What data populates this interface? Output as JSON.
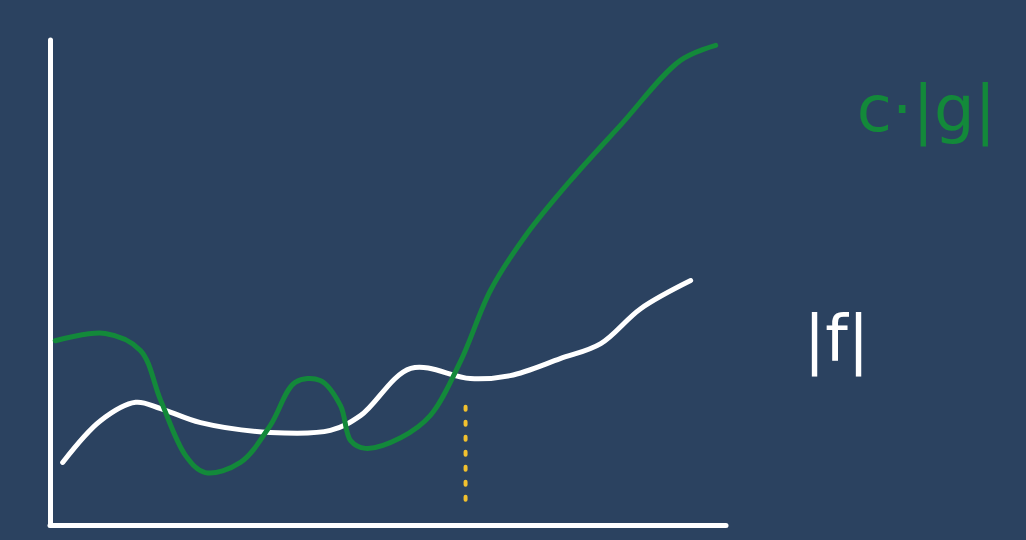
{
  "chart_data": {
    "type": "line",
    "tick_labels": false,
    "grid": false,
    "xlim": [
      0,
      100
    ],
    "ylim": [
      0,
      100
    ],
    "xticks": [],
    "yticks": [],
    "series": [
      {
        "name": "c·|g|",
        "color": "#13893a",
        "x": [
          0.7,
          8.1,
          13.3,
          16.3,
          20.0,
          22.9,
          28.1,
          32.5,
          36.2,
          39.9,
          42.9,
          44.4,
          46.6,
          51.8,
          56.2,
          60.7,
          65.1,
          70.3,
          76.9,
          84.3,
          93.2,
          98.4
        ],
        "values": [
          38.1,
          39.6,
          36.1,
          25.8,
          14.4,
          10.9,
          13.0,
          20.6,
          29.5,
          29.9,
          24.7,
          17.5,
          15.9,
          18.1,
          22.7,
          34.0,
          48.5,
          59.8,
          71.1,
          82.5,
          95.9,
          99.0
        ]
      },
      {
        "name": "|f|",
        "color": "#ffffff",
        "x": [
          1.8,
          7.4,
          12.6,
          16.3,
          22.2,
          32.5,
          41.4,
          45.9,
          53.3,
          62.1,
          68.0,
          75.4,
          81.4,
          87.3,
          94.7
        ],
        "values": [
          13.0,
          21.6,
          25.4,
          24.1,
          21.2,
          19.2,
          19.6,
          22.7,
          32.4,
          30.3,
          30.9,
          34.4,
          37.5,
          44.7,
          50.5
        ]
      }
    ],
    "crossing": {
      "x": 61.4,
      "y": [
        5.2,
        24.7
      ],
      "color": "#f2c12e",
      "line_style": "dotted"
    }
  }
}
